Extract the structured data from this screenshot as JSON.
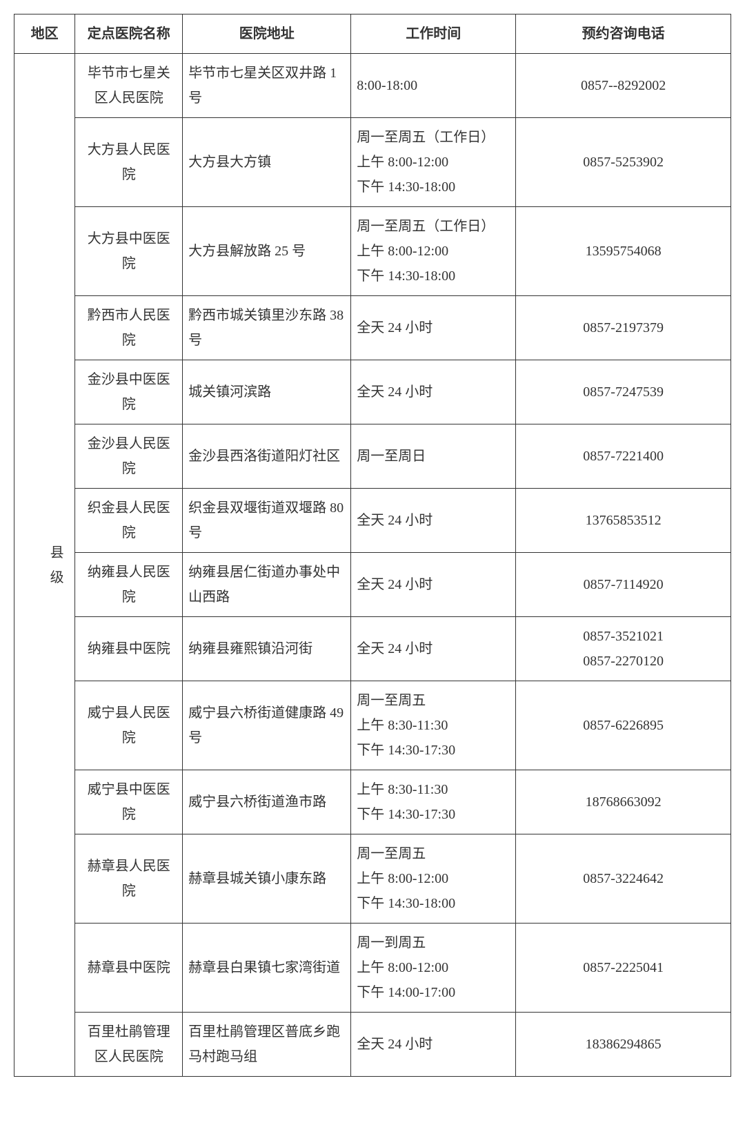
{
  "header": {
    "region": "地区",
    "hospital": "定点医院名称",
    "address": "医院地址",
    "hours": "工作时间",
    "phone": "预约咨询电话"
  },
  "level_label": "县级",
  "rows": [
    {
      "hospital": "毕节市七星关区人民医院",
      "address": "毕节市七星关区双井路 1 号",
      "hours": "8:00-18:00",
      "phone": "0857--8292002"
    },
    {
      "hospital": "大方县人民医院",
      "address": "大方县大方镇",
      "hours": "周一至周五（工作日）\n上午 8:00-12:00\n下午 14:30-18:00",
      "phone": "0857-5253902"
    },
    {
      "hospital": "大方县中医医院",
      "address": "大方县解放路 25 号",
      "hours": "周一至周五（工作日）\n上午 8:00-12:00\n下午 14:30-18:00",
      "phone": "13595754068"
    },
    {
      "hospital": "黔西市人民医院",
      "address": "黔西市城关镇里沙东路 38 号",
      "hours": "全天 24 小时",
      "phone": "0857-2197379"
    },
    {
      "hospital": "金沙县中医医院",
      "address": "城关镇河滨路",
      "hours": "全天 24 小时",
      "phone": "0857-7247539"
    },
    {
      "hospital": "金沙县人民医院",
      "address": "金沙县西洛街道阳灯社区",
      "hours": "周一至周日",
      "phone": "0857-7221400"
    },
    {
      "hospital": "织金县人民医院",
      "address": "织金县双堰街道双堰路 80 号",
      "hours": "全天 24 小时",
      "phone": "13765853512"
    },
    {
      "hospital": "纳雍县人民医院",
      "address": "纳雍县居仁街道办事处中山西路",
      "hours": "全天 24 小时",
      "phone": "0857-7114920"
    },
    {
      "hospital": "纳雍县中医院",
      "address": "纳雍县雍熙镇沿河街",
      "hours": "全天 24 小时",
      "phone": "0857-3521021\n0857-2270120"
    },
    {
      "hospital": "威宁县人民医院",
      "address": "威宁县六桥街道健康路 49 号",
      "hours": "周一至周五\n上午 8:30-11:30\n下午 14:30-17:30",
      "phone": "0857-6226895"
    },
    {
      "hospital": "威宁县中医医院",
      "address": "威宁县六桥街道渔市路",
      "hours": "上午 8:30-11:30\n下午 14:30-17:30",
      "phone": "18768663092"
    },
    {
      "hospital": "赫章县人民医院",
      "address": "赫章县城关镇小康东路",
      "hours": "周一至周五\n上午 8:00-12:00\n下午 14:30-18:00",
      "phone": "0857-3224642"
    },
    {
      "hospital": "赫章县中医院",
      "address": "赫章县白果镇七家湾街道",
      "hours": "周一到周五\n上午 8:00-12:00\n下午 14:00-17:00",
      "phone": "0857-2225041"
    },
    {
      "hospital": "百里杜鹃管理区人民医院",
      "address": "百里杜鹃管理区普底乡跑马村跑马组",
      "hours": "全天 24 小时",
      "phone": "18386294865"
    }
  ],
  "styling": {
    "border_color": "#333333",
    "background_color": "#ffffff",
    "text_color": "#333333",
    "font_size": 20,
    "line_height": 1.8,
    "font_family": "SimSun"
  }
}
